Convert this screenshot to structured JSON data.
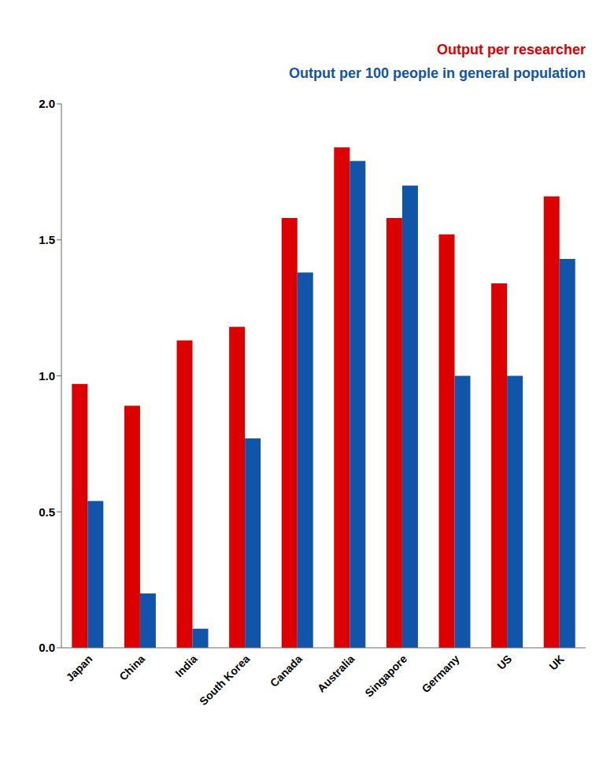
{
  "chart_data": {
    "type": "bar",
    "categories": [
      "Japan",
      "China",
      "India",
      "South Korea",
      "Canada",
      "Australia",
      "Singapore",
      "Germany",
      "US",
      "UK"
    ],
    "series": [
      {
        "name": "Output per researcher",
        "color": "#dd0000",
        "values": [
          0.97,
          0.89,
          1.13,
          1.18,
          1.58,
          1.84,
          1.58,
          1.52,
          1.34,
          1.66
        ]
      },
      {
        "name": "Output per 100 people in general population",
        "color": "#1155aa",
        "values": [
          0.54,
          0.2,
          0.07,
          0.77,
          1.38,
          1.79,
          1.7,
          1.0,
          1.0,
          1.43
        ]
      }
    ],
    "ylim": [
      0.0,
      2.0
    ],
    "yticks": [
      {
        "value": 0,
        "label": "0.0"
      },
      0.5,
      {
        "value": 1,
        "label": "1.0"
      },
      1.5,
      {
        "value": 2,
        "label": "2.0"
      }
    ],
    "grid": false,
    "legend": "top right"
  }
}
